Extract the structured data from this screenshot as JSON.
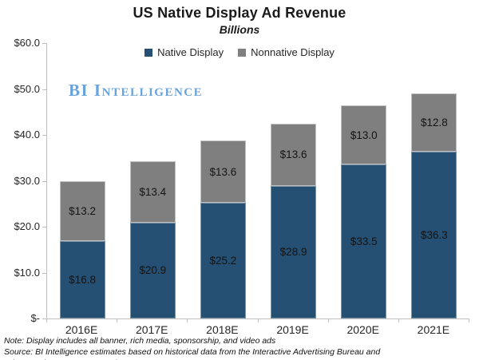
{
  "title": "US Native Display Ad Revenue",
  "subtitle": "Billions",
  "watermark": "BI Intelligence",
  "notes": {
    "note": "Note: Display includes all banner, rich media, sponsorship, and video ads",
    "source": "Source: BI Intelligence estimates based on historical data from the Interactive Advertising Bureau and PricewaterhouseCoopers, and IHS"
  },
  "colors": {
    "native_display": "#254F73",
    "nonnative_display": "#7F7F7F",
    "axis_line": "#BFBFBF",
    "watermark_blue": "#69A3DC",
    "text": "#1A1A1A"
  },
  "chart_data": {
    "type": "bar",
    "stacked": true,
    "title": "US Native Display Ad Revenue",
    "subtitle": "Billions",
    "categories": [
      "2016E",
      "2017E",
      "2018E",
      "2019E",
      "2020E",
      "2021E"
    ],
    "series": [
      {
        "name": "Native Display",
        "color": "#254F73",
        "border": "#7D94A6",
        "values": [
          16.8,
          20.9,
          25.2,
          28.9,
          33.5,
          36.3
        ]
      },
      {
        "name": "Nonnative Display",
        "color": "#7F7F7F",
        "border": "#C0C0C0",
        "values": [
          13.2,
          13.4,
          13.6,
          13.6,
          13.0,
          12.8
        ]
      }
    ],
    "totals": [
      30.0,
      34.3,
      38.8,
      42.5,
      46.5,
      49.1
    ],
    "xlabel": "",
    "ylabel": "",
    "ylim": [
      0,
      60
    ],
    "yticks": [
      {
        "value": 0,
        "label": "$-"
      },
      {
        "value": 10,
        "label": "$10.0"
      },
      {
        "value": 20,
        "label": "$20.0"
      },
      {
        "value": 30,
        "label": "$30.0"
      },
      {
        "value": 40,
        "label": "$40.0"
      },
      {
        "value": 50,
        "label": "$50.0"
      },
      {
        "value": 60,
        "label": "$60.0"
      }
    ],
    "data_label_prefix": "$",
    "data_label_decimals": 1,
    "grid": false,
    "legend_position": "top-center"
  }
}
